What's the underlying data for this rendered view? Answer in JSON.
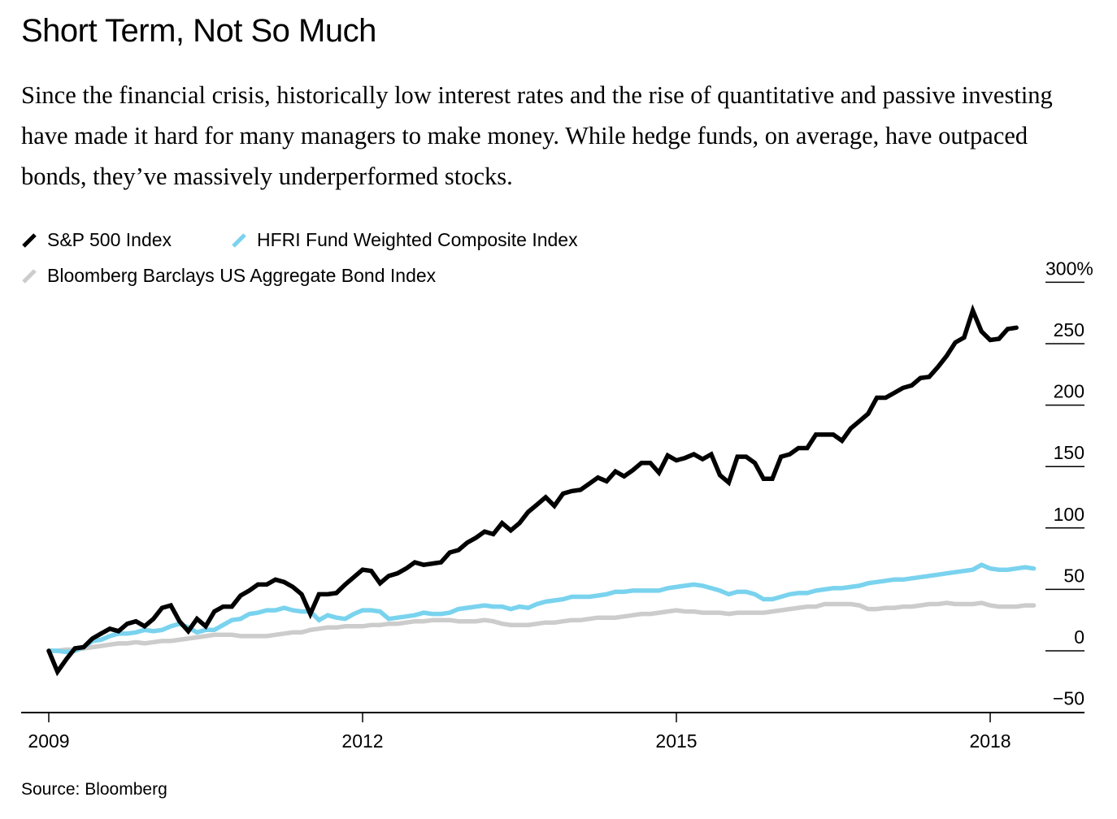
{
  "header": {
    "title": "Short Term, Not So Much",
    "subtitle": "Since the financial crisis, historically low interest rates and the rise of quantitative and passive investing have made it hard for many managers to make money. While hedge funds, on average, have outpaced bonds, they’ve massively underperformed stocks."
  },
  "legend": {
    "items": [
      {
        "label": "S&P 500 Index",
        "color": "#000000"
      },
      {
        "label": "HFRI Fund Weighted Composite Index",
        "color": "#7ad3ee"
      },
      {
        "label": "Bloomberg Barclays US Aggregate Bond Index",
        "color": "#cccccc"
      }
    ]
  },
  "footer": {
    "source": "Source: Bloomberg"
  },
  "chart_data": {
    "type": "line",
    "title": "Short Term, Not So Much",
    "xlabel": "",
    "ylabel": "",
    "x_start": "2009-01",
    "x_frequency": "monthly",
    "xlim": [
      2009.0,
      2018.5
    ],
    "ylim": [
      -50,
      300
    ],
    "y_ticks": [
      {
        "value": 300,
        "label": "300%"
      },
      {
        "value": 250,
        "label": "250"
      },
      {
        "value": 200,
        "label": "200"
      },
      {
        "value": 150,
        "label": "150"
      },
      {
        "value": 100,
        "label": "100"
      },
      {
        "value": 50,
        "label": "50"
      },
      {
        "value": 0,
        "label": "0"
      },
      {
        "value": -50,
        "label": "-50"
      }
    ],
    "x_ticks": [
      {
        "value": 2009,
        "label": "2009"
      },
      {
        "value": 2012,
        "label": "2012"
      },
      {
        "value": 2015,
        "label": "2015"
      },
      {
        "value": 2018,
        "label": "2018"
      }
    ],
    "y_axis_position": "right",
    "grid": "short underlines beneath y tick labels",
    "legend_position": "top-left",
    "series": [
      {
        "name": "S&P 500 Index",
        "color": "#000000",
        "values": [
          0,
          -17,
          -7,
          2,
          3,
          10,
          14,
          18,
          16,
          22,
          24,
          20,
          26,
          35,
          37,
          24,
          16,
          26,
          20,
          32,
          36,
          36,
          45,
          49,
          54,
          54,
          58,
          56,
          52,
          46,
          30,
          46,
          46,
          47,
          54,
          60,
          66,
          65,
          55,
          61,
          63,
          67,
          72,
          70,
          71,
          72,
          80,
          82,
          88,
          92,
          97,
          95,
          104,
          98,
          104,
          113,
          119,
          125,
          118,
          128,
          130,
          131,
          136,
          141,
          138,
          146,
          142,
          147,
          153,
          153,
          145,
          159,
          155,
          157,
          160,
          156,
          160,
          143,
          137,
          158,
          158,
          153,
          140,
          140,
          158,
          160,
          165,
          165,
          176,
          176,
          176,
          171,
          181,
          187,
          193,
          206,
          206,
          210,
          214,
          216,
          222,
          223,
          231,
          240,
          251,
          255,
          277,
          260,
          253,
          254,
          262,
          263
        ]
      },
      {
        "name": "HFRI Fund Weighted Composite Index",
        "color": "#7ad3ee",
        "values": [
          0,
          0,
          -1,
          0,
          3,
          8,
          9,
          12,
          14,
          14,
          15,
          17,
          16,
          17,
          20,
          22,
          19,
          15,
          17,
          17,
          21,
          25,
          26,
          30,
          31,
          33,
          33,
          35,
          33,
          32,
          32,
          25,
          29,
          27,
          26,
          30,
          33,
          33,
          32,
          26,
          27,
          28,
          29,
          31,
          30,
          30,
          31,
          34,
          35,
          36,
          37,
          36,
          36,
          34,
          36,
          35,
          38,
          40,
          41,
          42,
          44,
          44,
          44,
          45,
          46,
          48,
          48,
          49,
          49,
          49,
          49,
          51,
          52,
          53,
          54,
          53,
          51,
          49,
          46,
          48,
          48,
          46,
          42,
          42,
          44,
          46,
          47,
          47,
          49,
          50,
          51,
          51,
          52,
          53,
          55,
          56,
          57,
          58,
          58,
          59,
          60,
          61,
          62,
          63,
          64,
          65,
          66,
          70,
          67,
          66,
          66,
          67,
          68,
          67
        ]
      },
      {
        "name": "Bloomberg Barclays US Aggregate Bond Index",
        "color": "#cccccc",
        "values": [
          0,
          0,
          1,
          1,
          2,
          3,
          4,
          5,
          6,
          6,
          7,
          6,
          7,
          8,
          8,
          9,
          10,
          11,
          12,
          13,
          13,
          13,
          12,
          12,
          12,
          12,
          13,
          14,
          15,
          15,
          17,
          18,
          19,
          19,
          20,
          20,
          20,
          21,
          21,
          22,
          22,
          23,
          24,
          24,
          25,
          25,
          25,
          24,
          24,
          24,
          25,
          24,
          22,
          21,
          21,
          21,
          22,
          23,
          23,
          24,
          25,
          25,
          26,
          27,
          27,
          27,
          28,
          29,
          30,
          30,
          31,
          32,
          33,
          32,
          32,
          31,
          31,
          31,
          30,
          31,
          31,
          31,
          31,
          32,
          33,
          34,
          35,
          36,
          36,
          38,
          38,
          38,
          38,
          37,
          34,
          34,
          35,
          35,
          36,
          36,
          37,
          38,
          38,
          39,
          38,
          38,
          38,
          39,
          37,
          36,
          36,
          36,
          37,
          37
        ]
      }
    ]
  }
}
